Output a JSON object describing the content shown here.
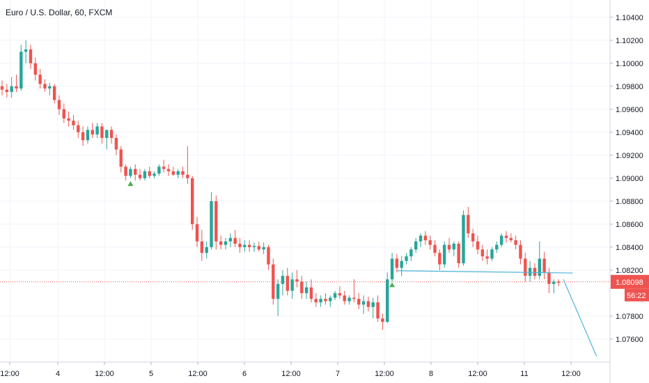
{
  "chart_data": {
    "type": "candlestick",
    "title": "Euro / U.S. Dollar, 60, FXCM",
    "y_ticks": [
      "1.10400",
      "1.10200",
      "1.10000",
      "1.09800",
      "1.09600",
      "1.09400",
      "1.09200",
      "1.09000",
      "1.08800",
      "1.08600",
      "1.08400",
      "1.08200",
      "1.07800",
      "1.07600"
    ],
    "y_tick_values": [
      1.104,
      1.102,
      1.1,
      1.098,
      1.096,
      1.094,
      1.092,
      1.09,
      1.088,
      1.086,
      1.084,
      1.082,
      1.078,
      1.076
    ],
    "ylim": [
      1.074,
      1.1055
    ],
    "x_ticks": [
      "12:00",
      "4",
      "12:00",
      "5",
      "12:00",
      "6",
      "12:00",
      "7",
      "12:00",
      "8",
      "12:00",
      "11",
      "12:00"
    ],
    "current_price": "1.08098",
    "current_price_value": 1.08098,
    "countdown": "56:22",
    "grid": true,
    "colors": {
      "up": "#26a69a",
      "down": "#ef5350",
      "signal": "#4caf50",
      "trendline": "#4fb3d9",
      "price_line": "#ef5350"
    },
    "ohlc": [
      [
        1.098,
        1.0985,
        1.0972,
        1.0977
      ],
      [
        1.0977,
        1.0982,
        1.097,
        1.0975
      ],
      [
        1.0975,
        1.0988,
        1.097,
        1.098
      ],
      [
        1.098,
        1.099,
        1.0975,
        1.0978
      ],
      [
        1.0978,
        1.1016,
        1.0976,
        1.101
      ],
      [
        1.101,
        1.102,
        1.1,
        1.1012
      ],
      [
        1.1012,
        1.1016,
        1.0995,
        1.1
      ],
      [
        1.1,
        1.1005,
        1.0985,
        1.099
      ],
      [
        1.099,
        1.0995,
        1.0978,
        1.0982
      ],
      [
        1.0982,
        1.0986,
        1.0975,
        1.0978
      ],
      [
        1.0978,
        1.0983,
        1.0972,
        1.098
      ],
      [
        1.098,
        1.0982,
        1.0965,
        1.0968
      ],
      [
        1.0968,
        1.0972,
        1.0955,
        1.096
      ],
      [
        1.096,
        1.0965,
        1.0948,
        1.0952
      ],
      [
        1.0952,
        1.0958,
        1.0945,
        1.095
      ],
      [
        1.095,
        1.0955,
        1.0942,
        1.0946
      ],
      [
        1.0946,
        1.095,
        1.0935,
        1.094
      ],
      [
        1.094,
        1.0945,
        1.0928,
        1.0933
      ],
      [
        1.0933,
        1.0945,
        1.093,
        1.0942
      ],
      [
        1.0942,
        1.0948,
        1.0935,
        1.0938
      ],
      [
        1.0938,
        1.0948,
        1.0935,
        1.0945
      ],
      [
        1.0945,
        1.0948,
        1.093,
        1.0935
      ],
      [
        1.0935,
        1.094,
        1.0925,
        1.0942
      ],
      [
        1.0942,
        1.0945,
        1.093,
        1.0935
      ],
      [
        1.0935,
        1.0938,
        1.092,
        1.0925
      ],
      [
        1.0925,
        1.0928,
        1.0905,
        1.091
      ],
      [
        1.091,
        1.0912,
        1.0898,
        1.0902
      ],
      [
        1.0902,
        1.091,
        1.09,
        1.0908
      ],
      [
        1.0908,
        1.0912,
        1.0898,
        1.0903
      ],
      [
        1.0903,
        1.0908,
        1.0898,
        1.09
      ],
      [
        1.09,
        1.0908,
        1.0898,
        1.0906
      ],
      [
        1.0906,
        1.091,
        1.09,
        1.0902
      ],
      [
        1.0902,
        1.0906,
        1.09,
        1.0904
      ],
      [
        1.0904,
        1.0912,
        1.0902,
        1.091
      ],
      [
        1.091,
        1.0916,
        1.0905,
        1.0908
      ],
      [
        1.0908,
        1.0912,
        1.0902,
        1.0906
      ],
      [
        1.0906,
        1.091,
        1.0902,
        1.0903
      ],
      [
        1.0903,
        1.0908,
        1.09,
        1.0906
      ],
      [
        1.0906,
        1.091,
        1.09,
        1.0903
      ],
      [
        1.0903,
        1.0928,
        1.0895,
        1.09
      ],
      [
        1.09,
        1.0902,
        1.0855,
        1.086
      ],
      [
        1.086,
        1.0866,
        1.084,
        1.0845
      ],
      [
        1.0845,
        1.0855,
        1.0828,
        1.0835
      ],
      [
        1.0835,
        1.0845,
        1.083,
        1.084
      ],
      [
        1.084,
        1.0888,
        1.0838,
        1.088
      ],
      [
        1.088,
        1.0885,
        1.0838,
        1.0845
      ],
      [
        1.0845,
        1.085,
        1.0838,
        1.0842
      ],
      [
        1.0842,
        1.0848,
        1.0838,
        1.0845
      ],
      [
        1.0845,
        1.0852,
        1.084,
        1.0848
      ],
      [
        1.0848,
        1.0855,
        1.084,
        1.0843
      ],
      [
        1.0843,
        1.0848,
        1.0835,
        1.084
      ],
      [
        1.084,
        1.0846,
        1.0836,
        1.0842
      ],
      [
        1.0842,
        1.0846,
        1.0836,
        1.084
      ],
      [
        1.084,
        1.0844,
        1.0836,
        1.0841
      ],
      [
        1.0841,
        1.0845,
        1.0836,
        1.0838
      ],
      [
        1.0838,
        1.0844,
        1.0834,
        1.084
      ],
      [
        1.084,
        1.0842,
        1.082,
        1.0825
      ],
      [
        1.0825,
        1.083,
        1.079,
        1.0795
      ],
      [
        1.0795,
        1.0812,
        1.078,
        1.0808
      ],
      [
        1.0808,
        1.082,
        1.0798,
        1.0815
      ],
      [
        1.0815,
        1.0822,
        1.0798,
        1.0802
      ],
      [
        1.0802,
        1.0818,
        1.0795,
        1.0812
      ],
      [
        1.0812,
        1.082,
        1.0805,
        1.081
      ],
      [
        1.081,
        1.0815,
        1.0795,
        1.08
      ],
      [
        1.08,
        1.081,
        1.0795,
        1.0805
      ],
      [
        1.0805,
        1.0812,
        1.0792,
        1.0795
      ],
      [
        1.0795,
        1.08,
        1.0788,
        1.0792
      ],
      [
        1.0792,
        1.0798,
        1.0788,
        1.0795
      ],
      [
        1.0795,
        1.08,
        1.079,
        1.0793
      ],
      [
        1.0793,
        1.0798,
        1.0788,
        1.0796
      ],
      [
        1.0796,
        1.0802,
        1.0794,
        1.08
      ],
      [
        1.08,
        1.0806,
        1.0795,
        1.0798
      ],
      [
        1.0798,
        1.0802,
        1.079,
        1.0793
      ],
      [
        1.0793,
        1.0798,
        1.079,
        1.0796
      ],
      [
        1.0796,
        1.0812,
        1.0792,
        1.0795
      ],
      [
        1.0795,
        1.08,
        1.0786,
        1.079
      ],
      [
        1.079,
        1.0798,
        1.0782,
        1.0793
      ],
      [
        1.0793,
        1.0797,
        1.0784,
        1.0788
      ],
      [
        1.0788,
        1.0796,
        1.0778,
        1.0792
      ],
      [
        1.0792,
        1.0798,
        1.0775,
        1.0778
      ],
      [
        1.0778,
        1.0782,
        1.0768,
        1.0775
      ],
      [
        1.0775,
        1.0818,
        1.0774,
        1.0812
      ],
      [
        1.0812,
        1.0835,
        1.081,
        1.083
      ],
      [
        1.083,
        1.0834,
        1.0818,
        1.0822
      ],
      [
        1.0822,
        1.0832,
        1.0815,
        1.0828
      ],
      [
        1.0828,
        1.0835,
        1.0825,
        1.0832
      ],
      [
        1.0832,
        1.084,
        1.0828,
        1.0838
      ],
      [
        1.0838,
        1.0848,
        1.0835,
        1.0845
      ],
      [
        1.0845,
        1.0852,
        1.084,
        1.085
      ],
      [
        1.085,
        1.0854,
        1.0842,
        1.0846
      ],
      [
        1.0846,
        1.085,
        1.0838,
        1.0842
      ],
      [
        1.0842,
        1.0846,
        1.0832,
        1.0835
      ],
      [
        1.0835,
        1.0838,
        1.082,
        1.0825
      ],
      [
        1.0825,
        1.0845,
        1.0822,
        1.0842
      ],
      [
        1.0842,
        1.0848,
        1.0835,
        1.0838
      ],
      [
        1.0838,
        1.0845,
        1.0832,
        1.0843
      ],
      [
        1.0843,
        1.0845,
        1.0822,
        1.0826
      ],
      [
        1.0826,
        1.0872,
        1.0824,
        1.0868
      ],
      [
        1.0868,
        1.0875,
        1.0848,
        1.0852
      ],
      [
        1.0852,
        1.0856,
        1.084,
        1.0845
      ],
      [
        1.0845,
        1.085,
        1.0834,
        1.0838
      ],
      [
        1.0838,
        1.0842,
        1.0828,
        1.0832
      ],
      [
        1.0832,
        1.0838,
        1.0825,
        1.083
      ],
      [
        1.083,
        1.084,
        1.0828,
        1.0838
      ],
      [
        1.0838,
        1.0845,
        1.0835,
        1.0842
      ],
      [
        1.0842,
        1.0852,
        1.084,
        1.085
      ],
      [
        1.085,
        1.0854,
        1.0844,
        1.0848
      ],
      [
        1.0848,
        1.0852,
        1.0844,
        1.0846
      ],
      [
        1.0846,
        1.085,
        1.0838,
        1.0842
      ],
      [
        1.0842,
        1.0846,
        1.0825,
        1.083
      ],
      [
        1.083,
        1.0835,
        1.081,
        1.0815
      ],
      [
        1.0815,
        1.0828,
        1.081,
        1.0822
      ],
      [
        1.0822,
        1.0826,
        1.0812,
        1.0815
      ],
      [
        1.0815,
        1.0845,
        1.0812,
        1.083
      ],
      [
        1.083,
        1.0836,
        1.0812,
        1.0818
      ],
      [
        1.0818,
        1.0822,
        1.08,
        1.0808
      ],
      [
        1.0808,
        1.0812,
        1.08,
        1.081
      ],
      [
        1.081,
        1.0812,
        1.0806,
        1.0809
      ]
    ],
    "signals": [
      {
        "type": "up-triangle",
        "index": 27,
        "price": 1.0895
      },
      {
        "type": "up-triangle",
        "index": 82,
        "price": 1.0807
      }
    ],
    "trendlines": [
      {
        "from": [
          83,
          1.08195
        ],
        "to": [
          120,
          1.08175
        ]
      },
      {
        "from": [
          118,
          1.0812
        ],
        "to": [
          125,
          1.0745
        ]
      }
    ]
  }
}
